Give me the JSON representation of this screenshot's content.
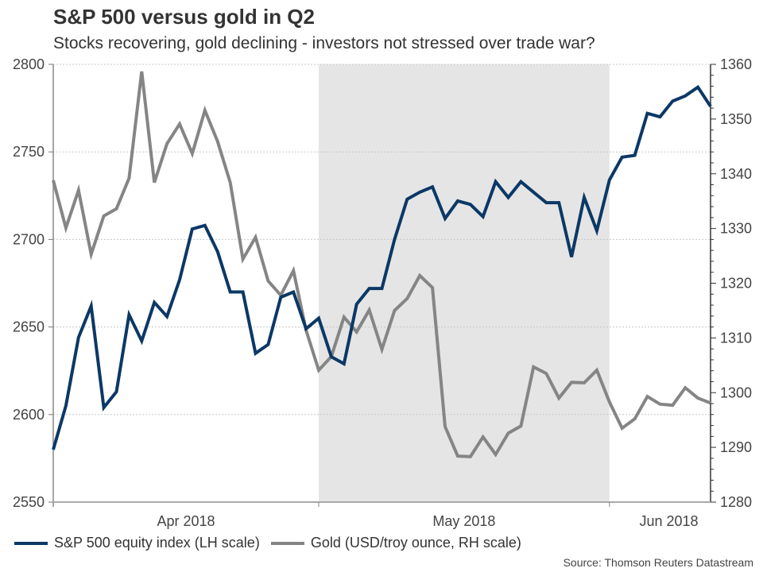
{
  "title": "S&P 500 versus gold in Q2",
  "subtitle": "Stocks recovering, gold declining - investors not stressed over trade war?",
  "source": "Source: Thomson Reuters Datastream",
  "colors": {
    "sp500": "#0b3866",
    "gold": "#858585",
    "shade": "#e5e5e5",
    "grid": "#c8c8c8"
  },
  "legend": [
    {
      "label": "S&P 500 equity index (LH scale)",
      "color": "#0b3866"
    },
    {
      "label": "Gold (USD/troy ounce, RH scale)",
      "color": "#858585"
    }
  ],
  "chart_data": {
    "type": "line",
    "title": "S&P 500 versus gold in Q2",
    "subtitle": "Stocks recovering, gold declining - investors not stressed over trade war?",
    "x_month_labels": [
      "Apr 2018",
      "May 2018",
      "Jun 2018"
    ],
    "shaded_period": "May 2018",
    "n_points": 53,
    "left_axis": {
      "label": "S&P 500 equity index",
      "ylim": [
        2550,
        2800
      ],
      "ticks": [
        2550,
        2600,
        2650,
        2700,
        2750,
        2800
      ]
    },
    "right_axis": {
      "label": "Gold (USD/troy ounce)",
      "ylim": [
        1280,
        1360
      ],
      "ticks": [
        1280,
        1290,
        1300,
        1310,
        1320,
        1330,
        1340,
        1350,
        1360
      ]
    },
    "grid": true,
    "legend_position": "bottom",
    "series": [
      {
        "name": "S&P 500 equity index (LH scale)",
        "axis": "left",
        "values": [
          2580,
          2605,
          2644,
          2662,
          2604,
          2613,
          2657,
          2642,
          2664,
          2656,
          2677,
          2706,
          2708,
          2693,
          2670,
          2670,
          2635,
          2640,
          2667,
          2670,
          2649,
          2655,
          2633,
          2629,
          2663,
          2672,
          2672,
          2700,
          2723,
          2727,
          2730,
          2712,
          2722,
          2720,
          2713,
          2733,
          2724,
          2733,
          2727,
          2721,
          2721,
          2690,
          2724,
          2705,
          2734,
          2747,
          2748,
          2772,
          2770,
          2779,
          2782,
          2787,
          2776
        ]
      },
      {
        "name": "Gold (USD/troy ounce, RH scale)",
        "axis": "right",
        "values": [
          1338.8,
          1330.1,
          1337.0,
          1325.3,
          1332.3,
          1333.6,
          1339.2,
          1358.7,
          1338.4,
          1345.5,
          1349.1,
          1343.7,
          1351.6,
          1345.9,
          1338.4,
          1324.4,
          1328.4,
          1320.4,
          1317.8,
          1322.3,
          1311.4,
          1304.1,
          1306.6,
          1313.8,
          1311.1,
          1315.1,
          1307.9,
          1315.0,
          1317.2,
          1321.4,
          1319.2,
          1293.8,
          1288.4,
          1288.3,
          1291.9,
          1288.7,
          1292.6,
          1293.9,
          1304.7,
          1303.5,
          1299.0,
          1301.9,
          1301.8,
          1304.1,
          1298.3,
          1293.5,
          1295.2,
          1299.3,
          1297.9,
          1297.7,
          1300.9,
          1299.0,
          1298.1
        ]
      }
    ]
  }
}
